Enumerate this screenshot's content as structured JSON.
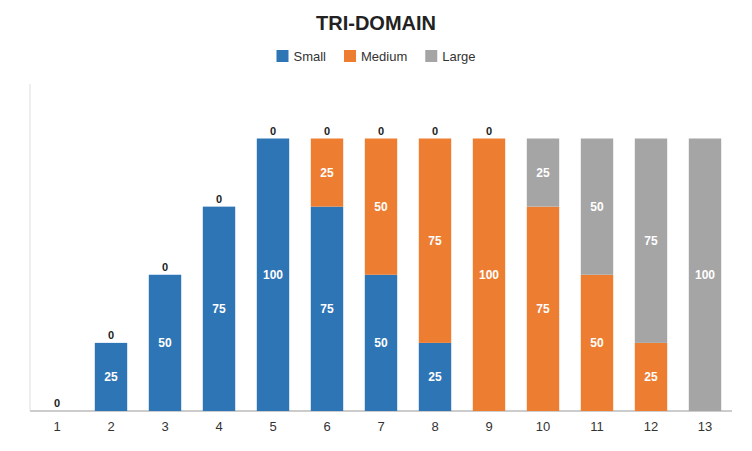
{
  "chart_data": {
    "type": "bar",
    "title": "TRI-DOMAIN",
    "categories": [
      "1",
      "2",
      "3",
      "4",
      "5",
      "6",
      "7",
      "8",
      "9",
      "10",
      "11",
      "12",
      "13"
    ],
    "series": [
      {
        "name": "Small",
        "color": "#2E75B6",
        "values": [
          0,
          25,
          50,
          75,
          100,
          75,
          50,
          25,
          0,
          0,
          0,
          0,
          0
        ]
      },
      {
        "name": "Medium",
        "color": "#ED7D31",
        "values": [
          0,
          0,
          0,
          0,
          0,
          25,
          50,
          75,
          100,
          75,
          50,
          25,
          0
        ]
      },
      {
        "name": "Large",
        "color": "#A5A5A5",
        "values": [
          0,
          0,
          0,
          0,
          0,
          0,
          0,
          0,
          0,
          25,
          50,
          75,
          100
        ]
      }
    ],
    "ylim": [
      0,
      120
    ],
    "stacked": true,
    "data_labels": true,
    "tick_labels": "x",
    "grid": false,
    "legend": "top"
  }
}
